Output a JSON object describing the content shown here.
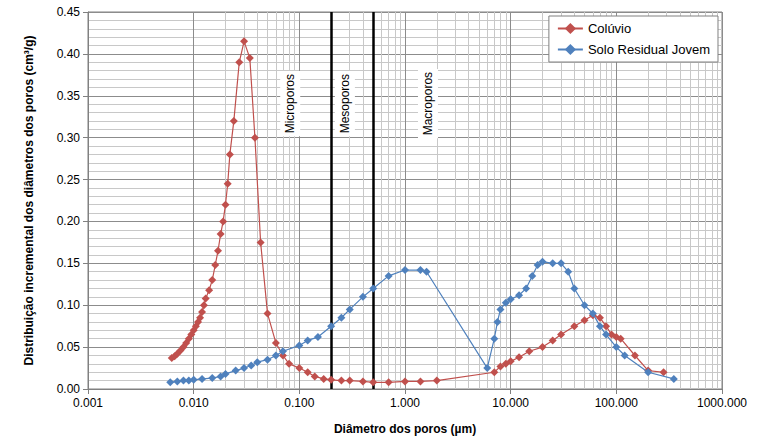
{
  "chart_data": {
    "type": "line",
    "xlabel": "Diâmetro dos poros (µm)",
    "ylabel": "Distribuição incremental dos diâmetros dos poros (cm³/g)",
    "log": "x",
    "grid": true,
    "legend": "upper right",
    "xlim": [
      0.001,
      1000
    ],
    "ylim": [
      0,
      0.45
    ],
    "xticks": [
      0.001,
      {
        "value": 0.01,
        "label": "0.010"
      },
      {
        "value": 0.1,
        "label": "0.100"
      },
      {
        "value": 1,
        "label": "1.000"
      },
      {
        "value": 10,
        "label": "10.000"
      },
      {
        "value": 100,
        "label": "100.000"
      },
      {
        "value": 1000,
        "label": "1000.000"
      }
    ],
    "yticks": [
      {
        "value": 0,
        "label": "0.00"
      },
      0.05,
      {
        "value": 0.1,
        "label": "0.10"
      },
      0.15,
      {
        "value": 0.2,
        "label": "0.20"
      },
      0.25,
      {
        "value": 0.3,
        "label": "0.30"
      },
      0.35,
      {
        "value": 0.4,
        "label": "0.40"
      },
      0.45
    ],
    "boundaries": [
      0.2,
      0.5
    ],
    "annotations": [
      {
        "text": "Microporos",
        "x": 0.082,
        "y": 0.34
      },
      {
        "text": "Mesoporos",
        "x": 0.27,
        "y": 0.34
      },
      {
        "text": "Macroporos",
        "x": 1.65,
        "y": 0.34
      }
    ],
    "series": [
      {
        "name": "Colúvio",
        "color": "#c0504d",
        "marker": "diamond",
        "x": [
          0.0062,
          0.0066,
          0.007,
          0.0075,
          0.008,
          0.0085,
          0.009,
          0.0095,
          0.01,
          0.0105,
          0.011,
          0.0115,
          0.012,
          0.0125,
          0.013,
          0.014,
          0.015,
          0.016,
          0.017,
          0.018,
          0.019,
          0.02,
          0.021,
          0.022,
          0.024,
          0.027,
          0.03,
          0.034,
          0.038,
          0.043,
          0.05,
          0.06,
          0.07,
          0.08,
          0.1,
          0.12,
          0.14,
          0.17,
          0.2,
          0.25,
          0.3,
          0.4,
          0.5,
          0.7,
          1,
          1.4,
          2,
          7,
          8,
          9,
          10,
          12,
          15,
          20,
          25,
          30,
          40,
          50,
          60,
          70,
          80,
          90,
          100,
          110,
          150,
          200,
          280
        ],
        "values": [
          0.037,
          0.039,
          0.042,
          0.046,
          0.05,
          0.055,
          0.06,
          0.065,
          0.07,
          0.075,
          0.08,
          0.085,
          0.092,
          0.1,
          0.108,
          0.118,
          0.13,
          0.148,
          0.165,
          0.185,
          0.2,
          0.22,
          0.245,
          0.28,
          0.32,
          0.39,
          0.415,
          0.395,
          0.3,
          0.175,
          0.09,
          0.055,
          0.04,
          0.03,
          0.025,
          0.02,
          0.015,
          0.012,
          0.011,
          0.01,
          0.01,
          0.009,
          0.008,
          0.008,
          0.009,
          0.009,
          0.01,
          0.02,
          0.027,
          0.03,
          0.033,
          0.038,
          0.045,
          0.05,
          0.058,
          0.065,
          0.075,
          0.082,
          0.088,
          0.085,
          0.075,
          0.065,
          0.062,
          0.06,
          0.04,
          0.022,
          0.02
        ]
      },
      {
        "name": "Solo Residual Jovem",
        "color": "#4f81bd",
        "marker": "diamond",
        "x": [
          0.006,
          0.007,
          0.008,
          0.009,
          0.01,
          0.012,
          0.015,
          0.018,
          0.02,
          0.025,
          0.03,
          0.035,
          0.04,
          0.05,
          0.06,
          0.07,
          0.1,
          0.12,
          0.15,
          0.2,
          0.25,
          0.3,
          0.4,
          0.5,
          0.7,
          1,
          1.4,
          1.6,
          6,
          7,
          7.5,
          8,
          9,
          10,
          12,
          14,
          16,
          18,
          20,
          25,
          30,
          35,
          40,
          50,
          60,
          70,
          80,
          100,
          120,
          200,
          350
        ],
        "values": [
          0.008,
          0.009,
          0.01,
          0.01,
          0.011,
          0.012,
          0.013,
          0.015,
          0.018,
          0.022,
          0.025,
          0.028,
          0.032,
          0.035,
          0.04,
          0.045,
          0.052,
          0.058,
          0.062,
          0.075,
          0.085,
          0.095,
          0.11,
          0.12,
          0.135,
          0.142,
          0.142,
          0.14,
          0.025,
          0.06,
          0.08,
          0.095,
          0.103,
          0.107,
          0.112,
          0.12,
          0.135,
          0.148,
          0.152,
          0.15,
          0.15,
          0.14,
          0.12,
          0.1,
          0.09,
          0.075,
          0.065,
          0.05,
          0.04,
          0.02,
          0.012
        ]
      }
    ]
  }
}
